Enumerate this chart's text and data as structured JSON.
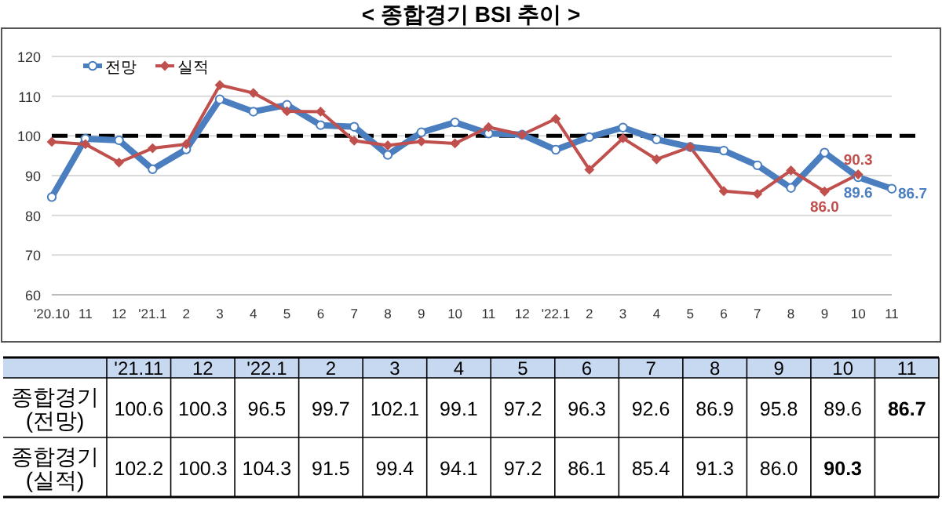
{
  "chart_data": [
    {
      "type": "line",
      "title": "< 종합경기 BSI 추이 >",
      "categories": [
        "'20.10",
        "11",
        "12",
        "'21.1",
        "2",
        "3",
        "4",
        "5",
        "6",
        "7",
        "8",
        "9",
        "10",
        "11",
        "12",
        "'22.1",
        "2",
        "3",
        "4",
        "5",
        "6",
        "7",
        "8",
        "9",
        "10",
        "11"
      ],
      "series": [
        {
          "name": "전망",
          "color": "#4a7ebf",
          "marker": "circle",
          "values": [
            84.6,
            99.3,
            98.9,
            91.6,
            96.6,
            109.2,
            106.1,
            107.8,
            102.7,
            102.3,
            95.2,
            100.9,
            103.4,
            100.6,
            100.3,
            96.5,
            99.7,
            102.1,
            99.1,
            97.2,
            96.3,
            92.6,
            86.9,
            95.8,
            89.6,
            86.7
          ],
          "value_labels": [
            null,
            null,
            null,
            null,
            null,
            null,
            null,
            null,
            null,
            null,
            null,
            null,
            null,
            null,
            null,
            null,
            null,
            null,
            null,
            null,
            null,
            null,
            null,
            null,
            "89.6",
            "86.7"
          ]
        },
        {
          "name": "실적",
          "color": "#c0504d",
          "marker": "diamond",
          "values": [
            98.5,
            97.9,
            93.3,
            96.9,
            97.9,
            112.8,
            110.8,
            106.2,
            106.1,
            98.8,
            97.6,
            98.6,
            98.1,
            102.2,
            100.3,
            104.3,
            91.5,
            99.4,
            94.1,
            97.2,
            86.1,
            85.4,
            91.3,
            86.0,
            90.3,
            null
          ],
          "value_labels": [
            null,
            null,
            null,
            null,
            null,
            null,
            null,
            null,
            null,
            null,
            null,
            null,
            null,
            null,
            null,
            null,
            null,
            null,
            null,
            null,
            null,
            null,
            null,
            "86.0",
            "90.3",
            null
          ]
        }
      ],
      "ylim": [
        60,
        120
      ],
      "yticks": [
        60,
        70,
        80,
        90,
        100,
        110,
        120
      ],
      "grid": "y",
      "legend": "top left",
      "ref_lines": [
        {
          "axis": "y",
          "value": 100,
          "color": "#000000",
          "line_style": "dashed"
        }
      ]
    },
    {
      "type": "heatmap",
      "cells": [
        [
          100.6,
          100.3,
          96.5,
          99.7,
          102.1,
          99.1,
          97.2,
          96.3,
          92.6,
          86.9,
          95.8,
          89.6,
          86.7
        ],
        [
          102.2,
          100.3,
          104.3,
          91.5,
          99.4,
          94.1,
          97.2,
          86.1,
          85.4,
          91.3,
          86.0,
          90.3,
          null
        ]
      ],
      "cell_labels": [
        [
          "100.6",
          "100.3",
          "96.5",
          "99.7",
          "102.1",
          "99.1",
          "97.2",
          "96.3",
          "92.6",
          "86.9",
          "95.8",
          "89.6",
          "86.7"
        ],
        [
          "102.2",
          "100.3",
          "104.3",
          "91.5",
          "99.4",
          "94.1",
          "97.2",
          "86.1",
          "85.4",
          "91.3",
          "86.0",
          "90.3",
          null
        ]
      ],
      "categories": [
        "'21.11",
        "12",
        "'22.1",
        "2",
        "3",
        "4",
        "5",
        "6",
        "7",
        "8",
        "9",
        "10",
        "11"
      ],
      "y_categories": [
        "종합경기 (전망)",
        "종합경기 (실적)"
      ]
    }
  ]
}
